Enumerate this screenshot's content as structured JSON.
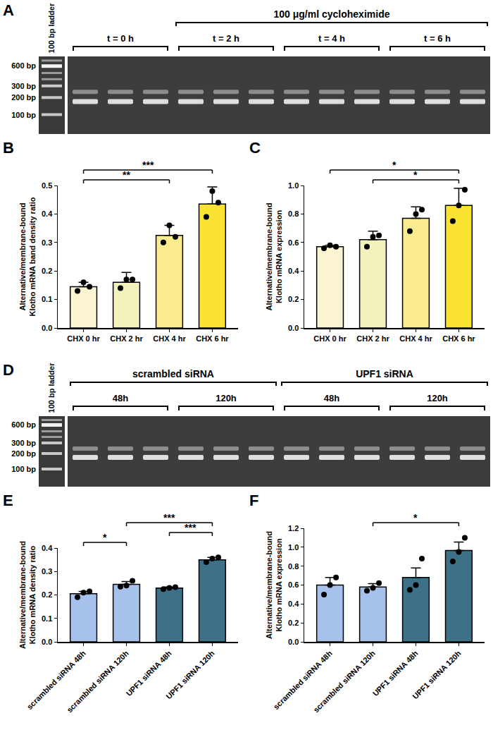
{
  "gels": [
    {
      "panel_label": "A",
      "ladder_label": "100 bp ladder",
      "ladder_bands": [
        "600 bp",
        "300 bp",
        "200 bp",
        "100 bp"
      ],
      "sections": [
        {
          "groups": [
            {
              "label": "t = 0 h",
              "lanes": 3
            }
          ]
        },
        {
          "label": "100 μg/ml cycloheximide",
          "groups": [
            {
              "label": "t = 2 h",
              "lanes": 3
            },
            {
              "label": "t = 4 h",
              "lanes": 3
            },
            {
              "label": "t = 6 h",
              "lanes": 3
            }
          ]
        }
      ]
    },
    {
      "panel_label": "D",
      "ladder_label": "100 bp ladder",
      "ladder_bands": [
        "600 bp",
        "300 bp",
        "200 bp",
        "100 bp"
      ],
      "sections": [
        {
          "label": "scrambled siRNA",
          "groups": [
            {
              "label": "48h",
              "lanes": 3
            },
            {
              "label": "120h",
              "lanes": 3
            }
          ]
        },
        {
          "label": "UPF1 siRNA",
          "groups": [
            {
              "label": "48h",
              "lanes": 3
            },
            {
              "label": "120h",
              "lanes": 3
            }
          ]
        }
      ]
    }
  ],
  "chart_data": [
    {
      "panel_label": "B",
      "type": "bar",
      "grid": false,
      "categories": [
        "CHX 0 hr",
        "CHX 2 hr",
        "CHX 4 hr",
        "CHX 6 hr"
      ],
      "values": [
        0.145,
        0.16,
        0.325,
        0.435
      ],
      "error": [
        0.015,
        0.035,
        0.035,
        0.06
      ],
      "points": [
        [
          0.13,
          0.16,
          0.145
        ],
        [
          0.14,
          0.17,
          0.17
        ],
        [
          0.3,
          0.36,
          0.32
        ],
        [
          0.39,
          0.48,
          0.44
        ]
      ],
      "colors": [
        "#faf4d2",
        "#f3f2bc",
        "#faec8c",
        "#fbe331"
      ],
      "ylabel": [
        "Alternative/membrane-bound",
        "Klotho mRNA band density ratio"
      ],
      "ylim": [
        0,
        0.5
      ],
      "yticks": [
        {
          "value": 0,
          "label": "0.0"
        },
        {
          "value": 0.1,
          "label": "0.1"
        },
        {
          "value": 0.2,
          "label": "0.2"
        },
        {
          "value": 0.3,
          "label": "0.3"
        },
        {
          "value": 0.4,
          "label": "0.4"
        },
        {
          "value": 0.5,
          "label": "0.5"
        }
      ],
      "significance": [
        {
          "from": "CHX 0 hr",
          "to": "CHX 4 hr",
          "label": "**"
        },
        {
          "from": "CHX 0 hr",
          "to": "CHX 6 hr",
          "label": "***"
        }
      ]
    },
    {
      "panel_label": "C",
      "type": "bar",
      "grid": false,
      "categories": [
        "CHX 0 hr",
        "CHX 2 hr",
        "CHX 4 hr",
        "CHX 6 hr"
      ],
      "values": [
        0.57,
        0.62,
        0.77,
        0.86
      ],
      "error": [
        0.01,
        0.06,
        0.08,
        0.12
      ],
      "points": [
        [
          0.56,
          0.58,
          0.57
        ],
        [
          0.57,
          0.64,
          0.65
        ],
        [
          0.68,
          0.8,
          0.83
        ],
        [
          0.75,
          0.86,
          0.97
        ]
      ],
      "colors": [
        "#faf4d2",
        "#f3f2bc",
        "#faec8c",
        "#fbe331"
      ],
      "ylabel": [
        "Alternative/membrane-bound",
        "Klotho mRNA expression"
      ],
      "ylim": [
        0,
        1.0
      ],
      "yticks": [
        {
          "value": 0,
          "label": "0.0"
        },
        {
          "value": 0.2,
          "label": "0.2"
        },
        {
          "value": 0.4,
          "label": "0.4"
        },
        {
          "value": 0.6,
          "label": "0.6"
        },
        {
          "value": 0.8,
          "label": "0.8"
        },
        {
          "value": 1.0,
          "label": "1.0"
        }
      ],
      "significance": [
        {
          "from": "CHX 2 hr",
          "to": "CHX 6 hr",
          "label": "*"
        },
        {
          "from": "CHX 0 hr",
          "to": "CHX 6 hr",
          "label": "*"
        }
      ]
    },
    {
      "panel_label": "E",
      "type": "bar",
      "grid": false,
      "categories": [
        "scrambled siRNA 48h",
        "scrambled siRNA 120h",
        "UPF1 siRNA 48h",
        "UPF1 siRNA 120h"
      ],
      "values": [
        0.205,
        0.245,
        0.229,
        0.35
      ],
      "error": [
        0.01,
        0.012,
        0.005,
        0.01
      ],
      "points": [
        [
          0.19,
          0.21,
          0.215
        ],
        [
          0.235,
          0.24,
          0.26
        ],
        [
          0.225,
          0.23,
          0.233
        ],
        [
          0.34,
          0.355,
          0.36
        ]
      ],
      "colors": [
        "#a6c1ea",
        "#a6c1ea",
        "#3e7088",
        "#3e7088"
      ],
      "ylabel": [
        "Alternative/membrane-bound",
        "Klotho mRNA density ratio"
      ],
      "ylim": [
        0,
        0.4
      ],
      "yticks": [
        {
          "value": 0,
          "label": "0.0"
        },
        {
          "value": 0.1,
          "label": "0.1"
        },
        {
          "value": 0.2,
          "label": "0.2"
        },
        {
          "value": 0.3,
          "label": "0.3"
        },
        {
          "value": 0.4,
          "label": "0.4"
        }
      ],
      "significance": [
        {
          "from": "scrambled siRNA 48h",
          "to": "scrambled siRNA 120h",
          "label": "*"
        },
        {
          "from": "UPF1 siRNA 48h",
          "to": "UPF1 siRNA 120h",
          "label": "***"
        },
        {
          "from": "scrambled siRNA 120h",
          "to": "UPF1 siRNA 120h",
          "label": "***"
        }
      ]
    },
    {
      "panel_label": "F",
      "type": "bar",
      "grid": false,
      "categories": [
        "scrambled siRNA 48h",
        "scrambled siRNA 120h",
        "UPF1 siRNA 48h",
        "UPF1 siRNA 120h"
      ],
      "values": [
        0.6,
        0.58,
        0.68,
        0.965
      ],
      "error": [
        0.08,
        0.035,
        0.1,
        0.09
      ],
      "points": [
        [
          0.5,
          0.6,
          0.68
        ],
        [
          0.54,
          0.57,
          0.62
        ],
        [
          0.55,
          0.6,
          0.88
        ],
        [
          0.85,
          0.95,
          1.1
        ]
      ],
      "colors": [
        "#a6c1ea",
        "#a6c1ea",
        "#3e7088",
        "#3e7088"
      ],
      "ylabel": [
        "Alternative/membrane-bound",
        "Klotho mRNA expression"
      ],
      "ylim": [
        0,
        1.2
      ],
      "yticks": [
        {
          "value": 0,
          "label": "0.0"
        },
        {
          "value": 0.2,
          "label": "0.2"
        },
        {
          "value": 0.4,
          "label": "0.4"
        },
        {
          "value": 0.6,
          "label": "0.6"
        },
        {
          "value": 0.8,
          "label": "0.8"
        },
        {
          "value": 1.0,
          "label": "1.0"
        },
        {
          "value": 1.2,
          "label": "1.2"
        }
      ],
      "significance": [
        {
          "from": "scrambled siRNA 120h",
          "to": "UPF1 siRNA 120h",
          "label": "*"
        }
      ]
    }
  ]
}
